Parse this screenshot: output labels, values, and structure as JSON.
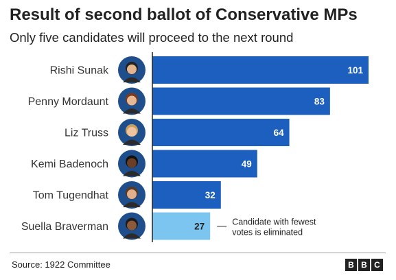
{
  "title": "Result of second ballot of Conservative MPs",
  "subtitle": "Only five candidates will proceed to the next round",
  "source": "Source: 1922 Committee",
  "logo": [
    "B",
    "B",
    "C"
  ],
  "colors": {
    "bar": "#1d5fbf",
    "eliminated_bar": "#7cc5f0",
    "axis": "#222222",
    "value_on_dark": "#ffffff",
    "value_on_light": "#222222"
  },
  "annotation": {
    "lines": [
      "Candidate with fewest",
      "votes is eliminated"
    ]
  },
  "chart_data": {
    "type": "bar",
    "orientation": "horizontal",
    "categories": [
      "Rishi Sunak",
      "Penny Mordaunt",
      "Liz Truss",
      "Kemi Badenoch",
      "Tom Tugendhat",
      "Suella Braverman"
    ],
    "values": [
      101,
      83,
      64,
      49,
      32,
      27
    ],
    "eliminated": [
      false,
      false,
      false,
      false,
      false,
      true
    ],
    "title": "Result of second ballot of Conservative MPs",
    "subtitle": "Only five candidates will proceed to the next round",
    "xlim": [
      0,
      101
    ],
    "data_labels": true,
    "grid": false,
    "legend": "none"
  }
}
